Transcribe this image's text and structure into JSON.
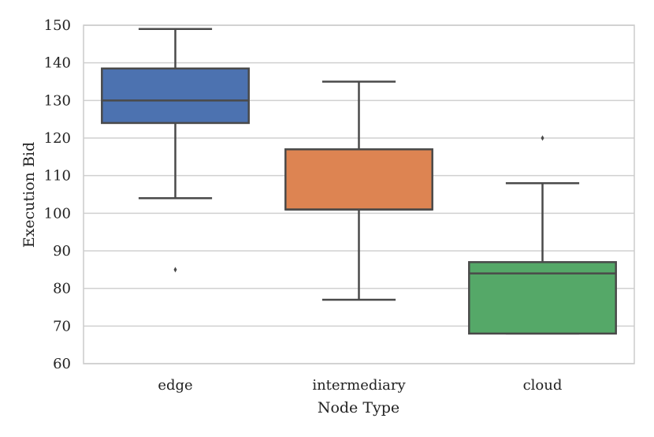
{
  "chart_data": {
    "type": "box",
    "xlabel": "Node Type",
    "ylabel": "Execution Bid",
    "ylim": [
      60,
      150
    ],
    "yticks": [
      60,
      70,
      80,
      90,
      100,
      110,
      120,
      130,
      140,
      150
    ],
    "grid": "horizontal",
    "categories": [
      "edge",
      "intermediary",
      "cloud"
    ],
    "boxes": [
      {
        "category": "edge",
        "color": "#4c72b0",
        "whisker_low": 104,
        "q1": 124,
        "median": 130,
        "q3": 138.5,
        "whisker_high": 149,
        "outliers": [
          85
        ]
      },
      {
        "category": "intermediary",
        "color": "#dd8452",
        "whisker_low": 77,
        "q1": 101,
        "median": 101,
        "q3": 117,
        "whisker_high": 135,
        "outliers": []
      },
      {
        "category": "cloud",
        "color": "#55a868",
        "whisker_low": 68,
        "q1": 68,
        "median": 84,
        "q3": 87,
        "whisker_high": 108,
        "outliers": [
          120
        ]
      }
    ]
  }
}
